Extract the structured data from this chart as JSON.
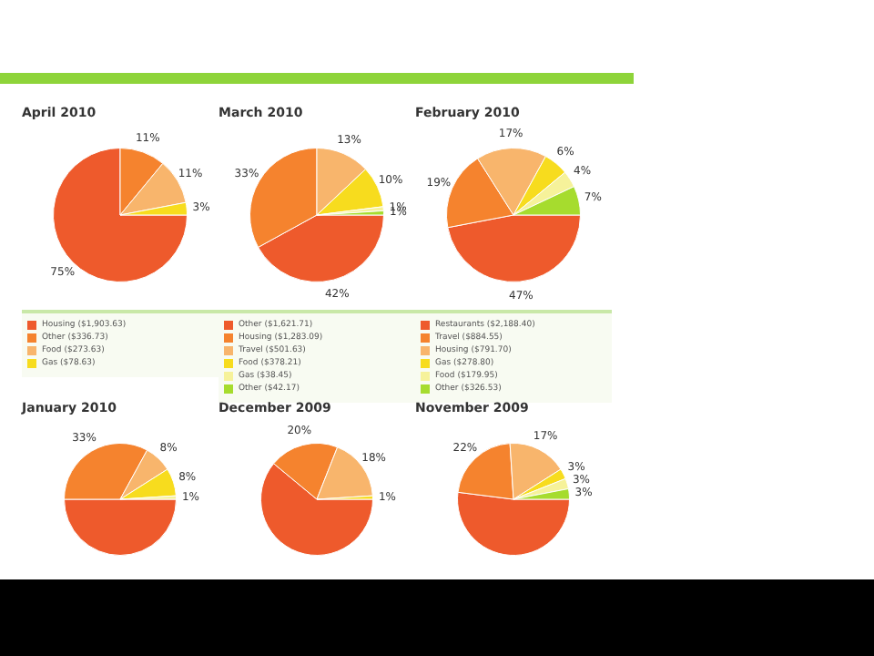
{
  "chart_data": [
    {
      "type": "pie",
      "title": "April 2010",
      "legend": "bottom",
      "categories": [
        "Housing ($1,903.63)",
        "Other ($336.73)",
        "Food ($273.63)",
        "Gas ($78.63)"
      ],
      "values": [
        75,
        11,
        11,
        3
      ],
      "value_labels": [
        "75%",
        "11%",
        "11%",
        "3%"
      ],
      "colors": [
        "#ee5a2c",
        "#f5832e",
        "#f8b56c",
        "#f7dc1e"
      ]
    },
    {
      "type": "pie",
      "title": "March 2010",
      "legend": "bottom",
      "categories": [
        "Other ($1,621.71)",
        "Housing ($1,283.09)",
        "Travel ($501.63)",
        "Food ($378.21)",
        "Gas ($38.45)",
        "Other ($42.17)"
      ],
      "values": [
        42,
        33,
        13,
        10,
        1,
        1
      ],
      "value_labels": [
        "42%",
        "33%",
        "13%",
        "10%",
        "1%",
        "1%"
      ],
      "colors": [
        "#ee5a2c",
        "#f5832e",
        "#f8b56c",
        "#f7dc1e",
        "#f6f29a",
        "#a6dc2e"
      ]
    },
    {
      "type": "pie",
      "title": "February 2010",
      "legend": "bottom",
      "categories": [
        "Restaurants ($2,188.40)",
        "Travel ($884.55)",
        "Housing ($791.70)",
        "Gas ($278.80)",
        "Food ($179.95)",
        "Other ($326.53)"
      ],
      "values": [
        47,
        19,
        17,
        6,
        4,
        7
      ],
      "value_labels": [
        "47%",
        "19%",
        "17%",
        "6%",
        "4%",
        "7%"
      ],
      "colors": [
        "#ee5a2c",
        "#f5832e",
        "#f8b56c",
        "#f7dc1e",
        "#f6f29a",
        "#a6dc2e"
      ]
    },
    {
      "type": "pie",
      "title": "January 2010",
      "categories": [
        null,
        null,
        null,
        null,
        null
      ],
      "values": [
        50,
        33,
        8,
        8,
        1
      ],
      "value_labels": [
        null,
        "33%",
        "8%",
        "8%",
        "1%"
      ],
      "colors": [
        "#ee5a2c",
        "#f5832e",
        "#f8b56c",
        "#f7dc1e",
        "#f6f29a"
      ]
    },
    {
      "type": "pie",
      "title": "December 2009",
      "categories": [
        null,
        null,
        null,
        null
      ],
      "values": [
        61,
        20,
        18,
        1
      ],
      "value_labels": [
        null,
        "20%",
        "18%",
        "1%"
      ],
      "colors": [
        "#ee5a2c",
        "#f5832e",
        "#f8b56c",
        "#f7dc1e"
      ]
    },
    {
      "type": "pie",
      "title": "November 2009",
      "categories": [
        null,
        null,
        null,
        null,
        null,
        null
      ],
      "values": [
        52,
        22,
        17,
        3,
        3,
        3
      ],
      "value_labels": [
        null,
        "22%",
        "17%",
        "3%",
        "3%",
        "3%"
      ],
      "colors": [
        "#ee5a2c",
        "#f5832e",
        "#f8b56c",
        "#f7dc1e",
        "#f6f29a",
        "#a6dc2e"
      ]
    }
  ]
}
